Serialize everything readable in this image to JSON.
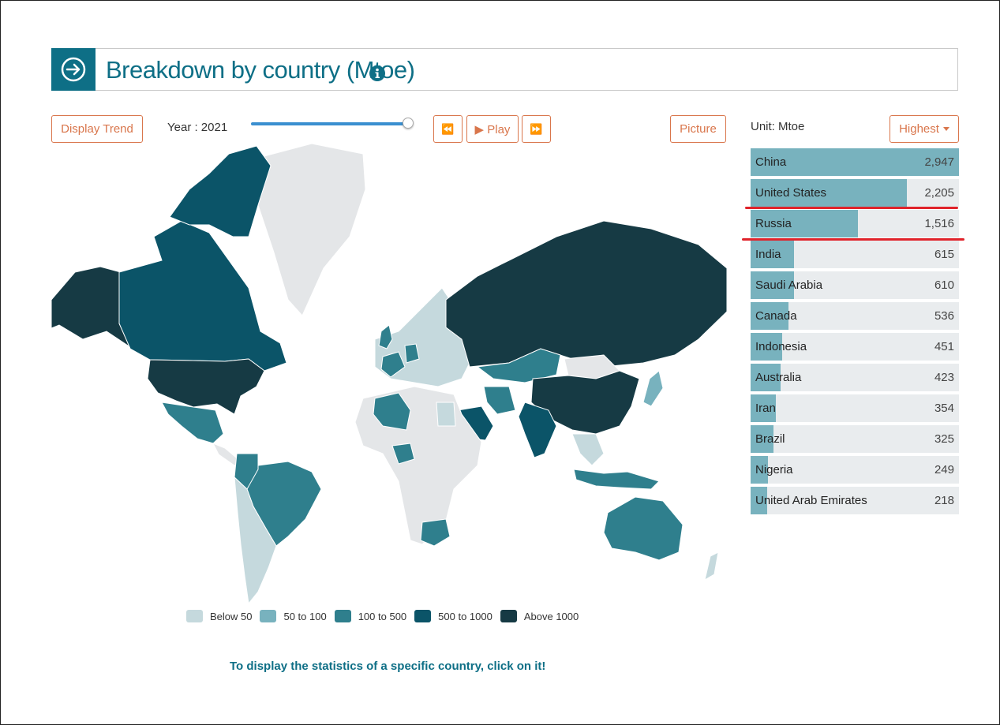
{
  "header": {
    "title": "Breakdown by country (Mtoe)"
  },
  "controls": {
    "display_trend": "Display Trend",
    "year_label": "Year : 2021",
    "year_slider_fraction": 1.0,
    "rewind_glyph": "⏪",
    "play_label": "▶ Play",
    "forward_glyph": "⏩",
    "picture": "Picture",
    "unit": "Unit: Mtoe",
    "sort": "Highest"
  },
  "colors": {
    "accent": "#0e6f86",
    "button": "#d9764c",
    "bar_fill": "#78b2be",
    "bar_bg": "#e9ecee",
    "highlight_line": "#e0232b",
    "no_data": "#e4e6e8"
  },
  "ranking": [
    {
      "name": "China",
      "value": "2,947",
      "num": 2947
    },
    {
      "name": "United States",
      "value": "2,205",
      "num": 2205
    },
    {
      "name": "Russia",
      "value": "1,516",
      "num": 1516
    },
    {
      "name": "India",
      "value": "615",
      "num": 615
    },
    {
      "name": "Saudi Arabia",
      "value": "610",
      "num": 610
    },
    {
      "name": "Canada",
      "value": "536",
      "num": 536
    },
    {
      "name": "Indonesia",
      "value": "451",
      "num": 451
    },
    {
      "name": "Australia",
      "value": "423",
      "num": 423
    },
    {
      "name": "Iran",
      "value": "354",
      "num": 354
    },
    {
      "name": "Brazil",
      "value": "325",
      "num": 325
    },
    {
      "name": "Nigeria",
      "value": "249",
      "num": 249
    },
    {
      "name": "United Arab Emirates",
      "value": "218",
      "num": 218
    }
  ],
  "legend": [
    {
      "label": "Below 50",
      "color": "#c5d9dd"
    },
    {
      "label": "50 to 100",
      "color": "#78b2be"
    },
    {
      "label": "100 to 500",
      "color": "#2f7f8d"
    },
    {
      "label": "500 to 1000",
      "color": "#0b5468"
    },
    {
      "label": "Above 1000",
      "color": "#163a44"
    }
  ],
  "hint": "To display the statistics of a specific country, click on it!"
}
